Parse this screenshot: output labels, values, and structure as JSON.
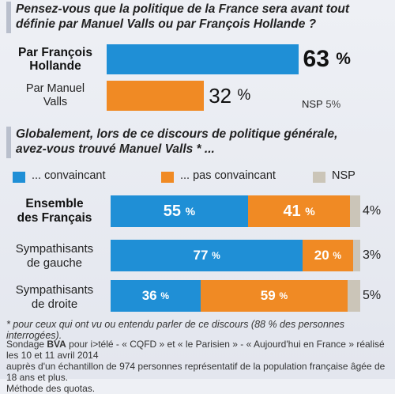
{
  "q1": {
    "title_line1": "Pensez-vous que la politique de la France sera avant tout",
    "title_line2": "définie par Manuel Valls ou par François Hollande ?"
  },
  "q2": {
    "title_line1": "Globalement, lors de ce discours de politique générale,",
    "title_line2": "avez-vous trouvé Manuel Valls * ..."
  },
  "chart_data": [
    {
      "type": "bar",
      "orientation": "horizontal",
      "categories": [
        "Par François Hollande",
        "Par Manuel Valls",
        "NSP"
      ],
      "values": [
        63,
        32,
        5
      ],
      "category_lines": [
        [
          "Par François",
          "Hollande"
        ],
        [
          "Par Manuel",
          "Valls"
        ],
        [
          "NSP"
        ]
      ],
      "value_labels": [
        "63",
        "32",
        "5"
      ],
      "unit": "%",
      "colors": [
        "#1f8fd6",
        "#f08a24"
      ]
    },
    {
      "type": "bar",
      "stacked": true,
      "orientation": "horizontal",
      "categories": [
        "Ensemble des Français",
        "Sympathisants de gauche",
        "Sympathisants de droite"
      ],
      "category_lines": [
        [
          "Ensemble",
          "des Français"
        ],
        [
          "Sympathisants",
          "de gauche"
        ],
        [
          "Sympathisants",
          "de droite"
        ]
      ],
      "series": [
        {
          "name": "... convaincant",
          "values": [
            55,
            77,
            36
          ],
          "color": "#1f8fd6"
        },
        {
          "name": "... pas convaincant",
          "values": [
            41,
            20,
            59
          ],
          "color": "#f08a24"
        },
        {
          "name": "NSP",
          "values": [
            4,
            3,
            5
          ],
          "color": "#cbc5b8"
        }
      ],
      "unit": "%"
    }
  ],
  "footnote": "* pour ceux qui ont vu ou entendu parler de ce discours (88 % des personnes interrogées).",
  "source": {
    "prefix": "Sondage ",
    "brand": "BVA",
    "line1_rest": " pour i>télé - « CQFD » et « le Parisien » - « Aujourd'hui en France » réalisé les 10 et 11 avril 2014",
    "line2": "auprès d'un échantillon de 974 personnes représentatif de la population française âgée de 18 ans et plus.",
    "line3": "Méthode des quotas."
  }
}
